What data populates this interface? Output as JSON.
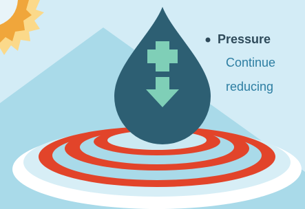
{
  "bullet": {
    "title": "Pressure",
    "lines": [
      "Continue",
      "reducing"
    ]
  }
}
